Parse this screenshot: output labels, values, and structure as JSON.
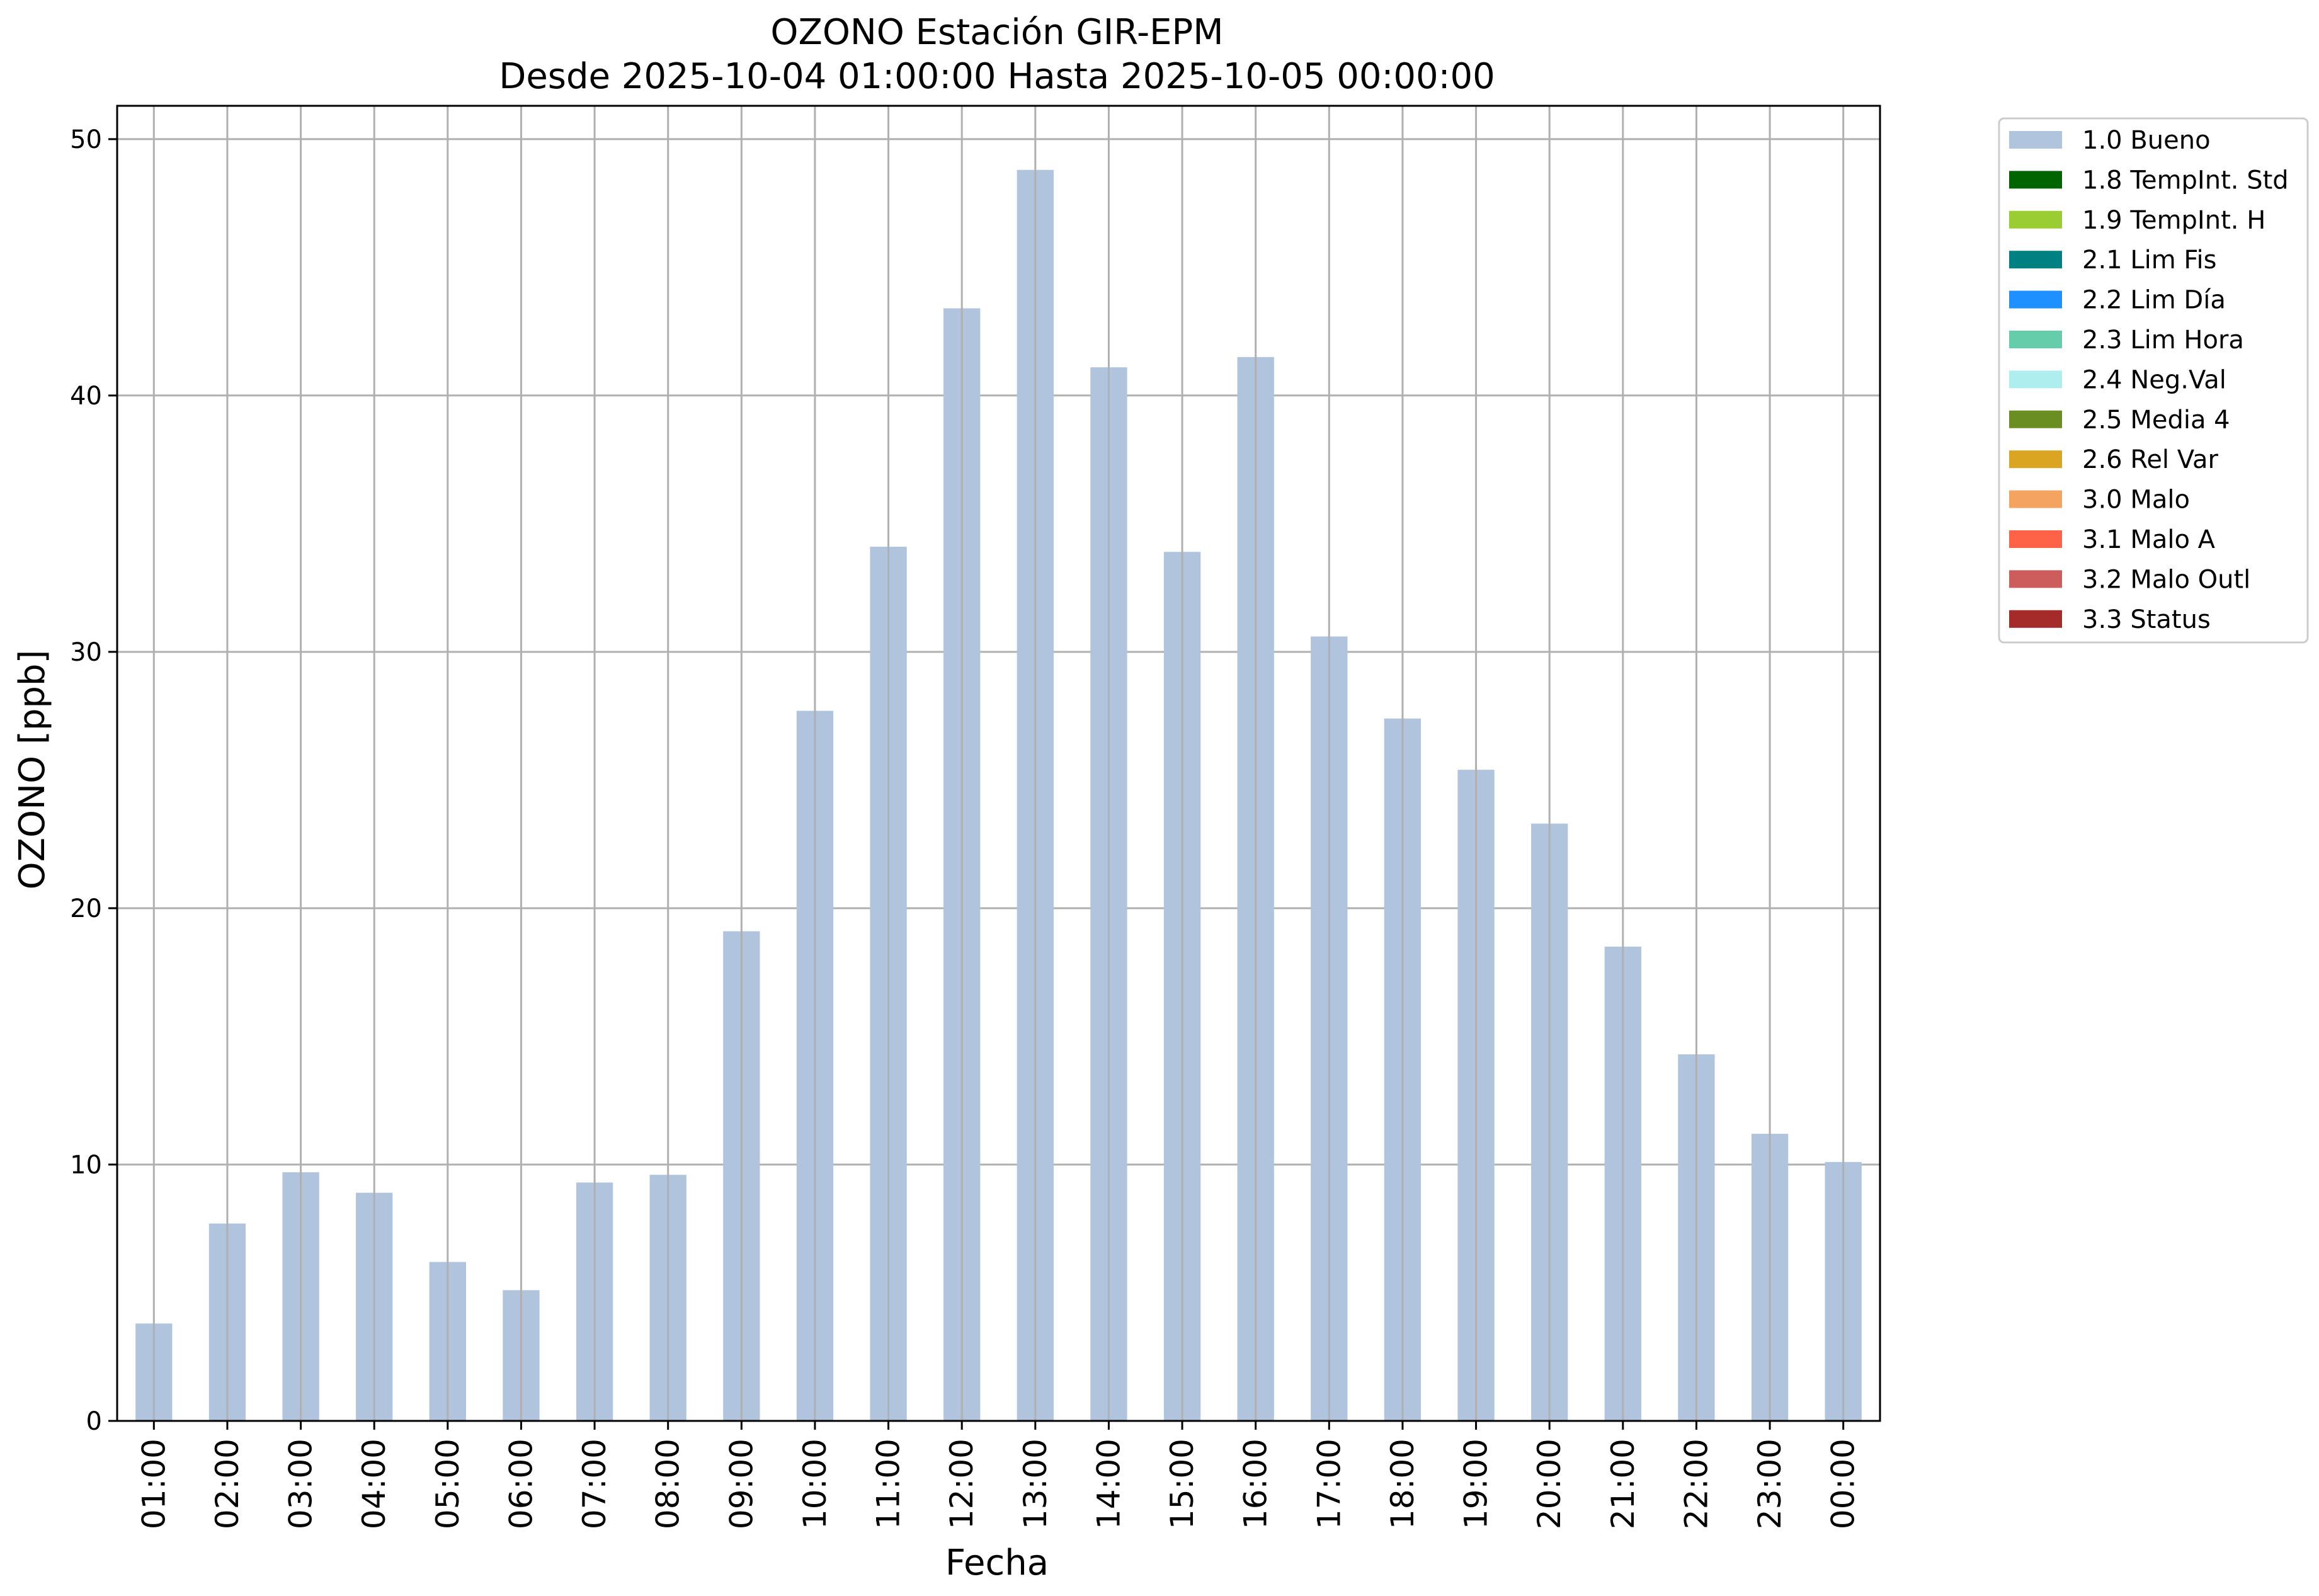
{
  "chart_data": {
    "type": "bar",
    "title": "OZONO Estación GIR-EPM",
    "subtitle": "Desde 2025-10-04 01:00:00 Hasta 2025-10-05 00:00:00",
    "xlabel": "Fecha",
    "ylabel": "OZONO [ppb]",
    "ylim": [
      0,
      51.3
    ],
    "yticks": [
      0,
      10,
      20,
      30,
      40,
      50
    ],
    "grid": true,
    "legend_position": "outside-right",
    "categories": [
      "01:00",
      "02:00",
      "03:00",
      "04:00",
      "05:00",
      "06:00",
      "07:00",
      "08:00",
      "09:00",
      "10:00",
      "11:00",
      "12:00",
      "13:00",
      "14:00",
      "15:00",
      "16:00",
      "17:00",
      "18:00",
      "19:00",
      "20:00",
      "21:00",
      "22:00",
      "23:00",
      "00:00"
    ],
    "series": [
      {
        "name": "1.0 Bueno",
        "color": "#b0c4de",
        "values": [
          3.8,
          7.7,
          9.7,
          8.9,
          6.2,
          5.1,
          9.3,
          9.6,
          19.1,
          27.7,
          34.1,
          43.4,
          48.8,
          41.1,
          33.9,
          41.5,
          30.6,
          27.4,
          25.4,
          23.3,
          18.5,
          14.3,
          11.2,
          10.1
        ]
      }
    ],
    "legend": [
      {
        "label": "1.0 Bueno",
        "color": "#b0c4de"
      },
      {
        "label": "1.8 TempInt. Std",
        "color": "#006400"
      },
      {
        "label": "1.9 TempInt. H",
        "color": "#9acd32"
      },
      {
        "label": "2.1 Lim Fis",
        "color": "#008080"
      },
      {
        "label": "2.2 Lim Día",
        "color": "#1e90ff"
      },
      {
        "label": "2.3 Lim Hora",
        "color": "#66cdaa"
      },
      {
        "label": "2.4 Neg.Val",
        "color": "#afeeee"
      },
      {
        "label": "2.5 Media 4",
        "color": "#6b8e23"
      },
      {
        "label": "2.6 Rel Var",
        "color": "#daa520"
      },
      {
        "label": "3.0 Malo",
        "color": "#f4a460"
      },
      {
        "label": "3.1 Malo A",
        "color": "#ff6347"
      },
      {
        "label": "3.2 Malo Outl",
        "color": "#cd5c5c"
      },
      {
        "label": "3.3 Status",
        "color": "#a52a2a"
      }
    ]
  }
}
